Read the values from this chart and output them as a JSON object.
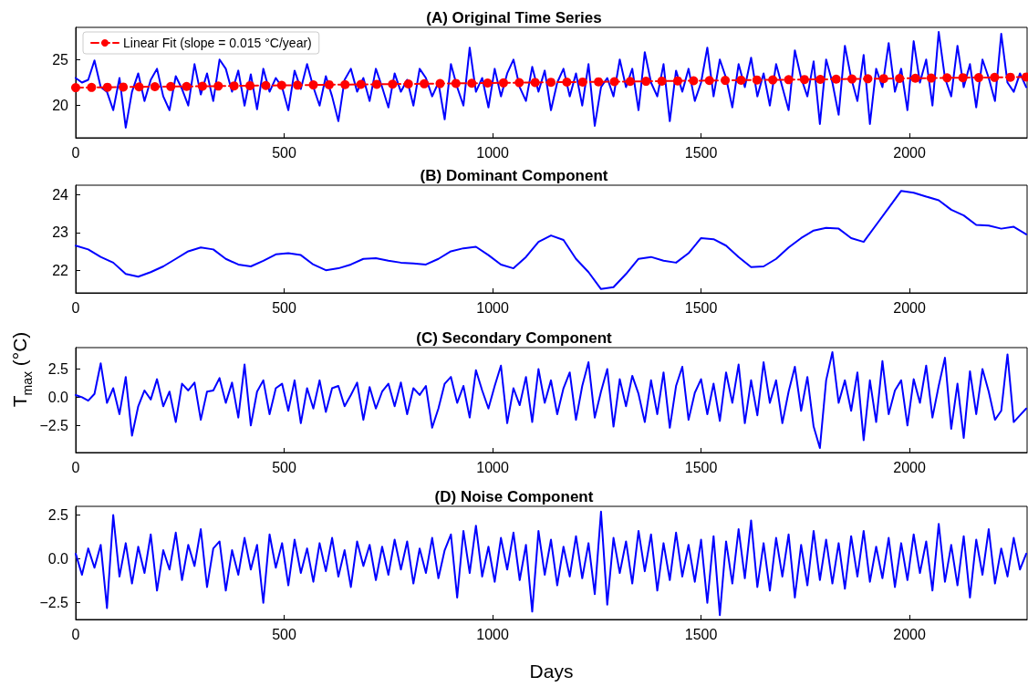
{
  "chart_data": [
    {
      "type": "line",
      "title": "(A) Original Time Series",
      "xlim": [
        0,
        2282
      ],
      "xticks": [
        0,
        500,
        1000,
        1500,
        2000
      ],
      "ylim": [
        16.5,
        28.5
      ],
      "yticks": [
        20,
        25
      ],
      "legend": "top left",
      "marker": "none",
      "line_style": "solid",
      "x": [
        0,
        15,
        30,
        45,
        60,
        75,
        90,
        105,
        120,
        135,
        150,
        165,
        180,
        195,
        210,
        225,
        240,
        255,
        270,
        285,
        300,
        315,
        330,
        345,
        360,
        375,
        390,
        405,
        420,
        435,
        450,
        465,
        480,
        495,
        510,
        525,
        540,
        555,
        570,
        585,
        600,
        615,
        630,
        645,
        660,
        675,
        690,
        705,
        720,
        735,
        750,
        765,
        780,
        795,
        810,
        825,
        840,
        855,
        870,
        885,
        900,
        915,
        930,
        945,
        960,
        975,
        990,
        1005,
        1020,
        1035,
        1050,
        1065,
        1080,
        1095,
        1110,
        1125,
        1140,
        1155,
        1170,
        1185,
        1200,
        1215,
        1230,
        1245,
        1260,
        1275,
        1290,
        1305,
        1320,
        1335,
        1350,
        1365,
        1380,
        1395,
        1410,
        1425,
        1440,
        1455,
        1470,
        1485,
        1500,
        1515,
        1530,
        1545,
        1560,
        1575,
        1590,
        1605,
        1620,
        1635,
        1650,
        1665,
        1680,
        1695,
        1710,
        1725,
        1740,
        1755,
        1770,
        1785,
        1800,
        1815,
        1830,
        1845,
        1860,
        1875,
        1890,
        1905,
        1920,
        1935,
        1950,
        1965,
        1980,
        1995,
        2010,
        2025,
        2040,
        2055,
        2070,
        2085,
        2100,
        2115,
        2130,
        2145,
        2160,
        2175,
        2190,
        2205,
        2220,
        2235,
        2250,
        2265,
        2280
      ],
      "series": [
        {
          "color": "#0000ff",
          "values": [
            23.0,
            22.5,
            22.8,
            24.9,
            22.0,
            21.5,
            19.5,
            23.0,
            17.6,
            21.5,
            23.5,
            20.5,
            22.8,
            24.0,
            21.0,
            19.5,
            23.2,
            21.8,
            20.0,
            24.5,
            21.2,
            23.5,
            20.5,
            25.0,
            24.0,
            21.5,
            23.8,
            20.0,
            23.4,
            19.6,
            24.0,
            21.5,
            23.0,
            22.0,
            19.5,
            23.8,
            21.8,
            24.5,
            22.0,
            20.0,
            23.2,
            21.0,
            18.3,
            22.8,
            24.0,
            21.5,
            23.0,
            20.5,
            24.0,
            22.0,
            19.8,
            23.5,
            21.5,
            22.8,
            20.0,
            24.0,
            23.0,
            21.0,
            22.5,
            18.5,
            24.5,
            22.0,
            20.0,
            26.3,
            21.5,
            23.0,
            19.8,
            24.0,
            21.0,
            23.5,
            25.0,
            22.0,
            20.5,
            24.2,
            21.5,
            23.8,
            19.5,
            22.5,
            24.0,
            21.0,
            23.5,
            20.0,
            24.5,
            17.8,
            22.0,
            23.0,
            21.0,
            25.0,
            22.0,
            24.0,
            19.5,
            25.8,
            22.5,
            21.0,
            24.5,
            18.3,
            23.8,
            21.5,
            24.0,
            20.5,
            22.5,
            26.3,
            21.0,
            25.0,
            23.0,
            19.8,
            24.5,
            22.0,
            25.2,
            21.0,
            23.5,
            20.0,
            24.5,
            22.0,
            19.5,
            26.0,
            23.0,
            21.0,
            24.8,
            18.0,
            25.0,
            22.5,
            19.0,
            26.5,
            23.0,
            20.5,
            25.5,
            18.0,
            24.0,
            22.0,
            26.8,
            21.5,
            24.0,
            19.5,
            27.0,
            22.5,
            25.0,
            20.0,
            28.0,
            23.0,
            21.0,
            26.5,
            22.0,
            24.5,
            19.8,
            25.0,
            23.0,
            20.5,
            27.8,
            22.5,
            21.5,
            23.5,
            22.0
          ]
        },
        {
          "name": "Linear Fit (slope = 0.015 °C/year)",
          "color": "#ff0000",
          "marker": "circle",
          "line_style": "dashed",
          "x": [
            0,
            38,
            76,
            114,
            152,
            190,
            228,
            266,
            304,
            342,
            380,
            418,
            456,
            494,
            532,
            570,
            608,
            646,
            684,
            722,
            760,
            798,
            836,
            874,
            912,
            950,
            988,
            1026,
            1064,
            1102,
            1140,
            1178,
            1216,
            1254,
            1292,
            1330,
            1368,
            1406,
            1444,
            1482,
            1520,
            1558,
            1596,
            1634,
            1672,
            1710,
            1748,
            1786,
            1824,
            1862,
            1900,
            1938,
            1976,
            2014,
            2052,
            2090,
            2128,
            2166,
            2204,
            2242,
            2280
          ],
          "values": [
            21.95,
            21.97,
            21.99,
            22.01,
            22.03,
            22.05,
            22.07,
            22.08,
            22.1,
            22.12,
            22.14,
            22.16,
            22.18,
            22.2,
            22.22,
            22.24,
            22.26,
            22.28,
            22.3,
            22.31,
            22.33,
            22.35,
            22.37,
            22.39,
            22.41,
            22.43,
            22.45,
            22.47,
            22.49,
            22.51,
            22.53,
            22.55,
            22.56,
            22.58,
            22.6,
            22.62,
            22.64,
            22.66,
            22.68,
            22.7,
            22.72,
            22.74,
            22.76,
            22.78,
            22.79,
            22.81,
            22.83,
            22.85,
            22.87,
            22.89,
            22.91,
            22.93,
            22.95,
            22.97,
            22.99,
            23.01,
            23.03,
            23.04,
            23.06,
            23.08,
            23.1
          ]
        }
      ]
    },
    {
      "type": "line",
      "title": "(B) Dominant Component",
      "ylabel": "T$_{max}$ (°C)",
      "xlim": [
        0,
        2282
      ],
      "xticks": [
        0,
        500,
        1000,
        1500,
        2000
      ],
      "ylim": [
        21.4,
        24.25
      ],
      "yticks": [
        22,
        23,
        24
      ],
      "marker": "none",
      "x": [
        0,
        30,
        60,
        90,
        120,
        150,
        180,
        210,
        240,
        270,
        300,
        330,
        360,
        390,
        420,
        450,
        480,
        510,
        540,
        570,
        600,
        630,
        660,
        690,
        720,
        750,
        780,
        810,
        840,
        870,
        900,
        930,
        960,
        990,
        1020,
        1050,
        1080,
        1110,
        1140,
        1170,
        1200,
        1230,
        1260,
        1290,
        1320,
        1350,
        1380,
        1410,
        1440,
        1470,
        1500,
        1530,
        1560,
        1590,
        1620,
        1650,
        1680,
        1710,
        1740,
        1770,
        1800,
        1830,
        1860,
        1890,
        1920,
        1950,
        1980,
        2010,
        2040,
        2070,
        2100,
        2130,
        2160,
        2190,
        2220,
        2250,
        2280
      ],
      "series": [
        {
          "color": "#0000ff",
          "values": [
            22.65,
            22.55,
            22.35,
            22.2,
            21.9,
            21.83,
            21.95,
            22.1,
            22.3,
            22.5,
            22.6,
            22.55,
            22.3,
            22.15,
            22.1,
            22.25,
            22.42,
            22.45,
            22.4,
            22.15,
            22.0,
            22.05,
            22.15,
            22.3,
            22.32,
            22.25,
            22.2,
            22.18,
            22.15,
            22.3,
            22.5,
            22.58,
            22.62,
            22.4,
            22.15,
            22.05,
            22.35,
            22.75,
            22.92,
            22.8,
            22.3,
            21.95,
            21.5,
            21.55,
            21.9,
            22.3,
            22.35,
            22.25,
            22.2,
            22.45,
            22.85,
            22.82,
            22.65,
            22.35,
            22.08,
            22.1,
            22.3,
            22.6,
            22.85,
            23.05,
            23.12,
            23.1,
            22.85,
            22.75,
            23.2,
            23.65,
            24.1,
            24.05,
            23.95,
            23.85,
            23.6,
            23.45,
            23.2,
            23.18,
            23.1,
            23.15,
            22.95
          ]
        }
      ]
    },
    {
      "type": "line",
      "title": "(C) Secondary Component",
      "xlim": [
        0,
        2282
      ],
      "xticks": [
        0,
        500,
        1000,
        1500,
        2000
      ],
      "ylim": [
        -4.9,
        4.4
      ],
      "yticks": [
        -2.5,
        {
          "value": 0,
          "label": "0.0"
        },
        2.5
      ],
      "marker": "none",
      "x": [
        0,
        15,
        30,
        45,
        60,
        75,
        90,
        105,
        120,
        135,
        150,
        165,
        180,
        195,
        210,
        225,
        240,
        255,
        270,
        285,
        300,
        315,
        330,
        345,
        360,
        375,
        390,
        405,
        420,
        435,
        450,
        465,
        480,
        495,
        510,
        525,
        540,
        555,
        570,
        585,
        600,
        615,
        630,
        645,
        660,
        675,
        690,
        705,
        720,
        735,
        750,
        765,
        780,
        795,
        810,
        825,
        840,
        855,
        870,
        885,
        900,
        915,
        930,
        945,
        960,
        975,
        990,
        1005,
        1020,
        1035,
        1050,
        1065,
        1080,
        1095,
        1110,
        1125,
        1140,
        1155,
        1170,
        1185,
        1200,
        1215,
        1230,
        1245,
        1260,
        1275,
        1290,
        1305,
        1320,
        1335,
        1350,
        1365,
        1380,
        1395,
        1410,
        1425,
        1440,
        1455,
        1470,
        1485,
        1500,
        1515,
        1530,
        1545,
        1560,
        1575,
        1590,
        1605,
        1620,
        1635,
        1650,
        1665,
        1680,
        1695,
        1710,
        1725,
        1740,
        1755,
        1770,
        1785,
        1800,
        1815,
        1830,
        1845,
        1860,
        1875,
        1890,
        1905,
        1920,
        1935,
        1950,
        1965,
        1980,
        1995,
        2010,
        2025,
        2040,
        2055,
        2070,
        2085,
        2100,
        2115,
        2130,
        2145,
        2160,
        2175,
        2190,
        2205,
        2220,
        2235,
        2250,
        2265,
        2280
      ],
      "series": [
        {
          "color": "#0000ff",
          "values": [
            0.2,
            0.0,
            -0.3,
            0.3,
            3.0,
            -0.5,
            0.8,
            -1.5,
            1.8,
            -3.4,
            -0.8,
            0.6,
            -0.2,
            1.6,
            -0.8,
            0.5,
            -2.2,
            1.2,
            0.6,
            1.3,
            -2.0,
            0.5,
            0.6,
            1.7,
            -0.5,
            1.3,
            -1.8,
            2.9,
            -2.5,
            0.5,
            1.5,
            -1.5,
            0.8,
            1.2,
            -1.2,
            1.5,
            -2.3,
            0.8,
            -1.0,
            1.5,
            -1.3,
            0.8,
            1.0,
            -0.8,
            0.2,
            1.3,
            -2.0,
            0.9,
            -1.0,
            0.5,
            1.2,
            -0.8,
            1.3,
            -1.5,
            0.8,
            0.2,
            1.0,
            -2.7,
            -1.0,
            1.2,
            1.8,
            -0.5,
            1.0,
            -1.8,
            2.4,
            0.6,
            -1.0,
            1.0,
            2.8,
            -2.3,
            0.8,
            -0.7,
            1.8,
            -2.2,
            2.5,
            -0.5,
            1.5,
            -1.5,
            0.8,
            2.2,
            -2.0,
            1.0,
            3.1,
            -1.8,
            0.5,
            2.5,
            -2.6,
            1.6,
            -0.8,
            1.9,
            0.3,
            -2.2,
            1.5,
            -1.5,
            2.2,
            -2.7,
            1.0,
            2.7,
            -2.0,
            0.4,
            1.6,
            -1.5,
            1.2,
            -2.1,
            2.2,
            -0.5,
            2.9,
            -2.3,
            1.5,
            -1.6,
            3.1,
            -0.5,
            1.5,
            -2.3,
            0.5,
            2.7,
            -1.2,
            1.8,
            -2.6,
            -4.5,
            1.5,
            4.0,
            -0.5,
            1.5,
            -1.2,
            2.2,
            -3.8,
            1.5,
            -2.2,
            3.2,
            -1.5,
            0.6,
            1.5,
            -2.5,
            1.6,
            -0.5,
            2.8,
            -1.8,
            1.0,
            3.5,
            -2.8,
            1.2,
            -3.6,
            2.3,
            -1.5,
            2.5,
            0.5,
            -2.0,
            -1.2,
            3.8,
            -2.2,
            -1.6,
            -1.0
          ]
        }
      ]
    },
    {
      "type": "line",
      "title": "(D) Noise Component",
      "xlabel": "Days",
      "xlim": [
        0,
        2282
      ],
      "xticks": [
        0,
        500,
        1000,
        1500,
        2000
      ],
      "ylim": [
        -3.45,
        3.0
      ],
      "yticks": [
        -2.5,
        {
          "value": 0,
          "label": "0.0"
        },
        2.5
      ],
      "marker": "none",
      "x": [
        0,
        15,
        30,
        45,
        60,
        75,
        90,
        105,
        120,
        135,
        150,
        165,
        180,
        195,
        210,
        225,
        240,
        255,
        270,
        285,
        300,
        315,
        330,
        345,
        360,
        375,
        390,
        405,
        420,
        435,
        450,
        465,
        480,
        495,
        510,
        525,
        540,
        555,
        570,
        585,
        600,
        615,
        630,
        645,
        660,
        675,
        690,
        705,
        720,
        735,
        750,
        765,
        780,
        795,
        810,
        825,
        840,
        855,
        870,
        885,
        900,
        915,
        930,
        945,
        960,
        975,
        990,
        1005,
        1020,
        1035,
        1050,
        1065,
        1080,
        1095,
        1110,
        1125,
        1140,
        1155,
        1170,
        1185,
        1200,
        1215,
        1230,
        1245,
        1260,
        1275,
        1290,
        1305,
        1320,
        1335,
        1350,
        1365,
        1380,
        1395,
        1410,
        1425,
        1440,
        1455,
        1470,
        1485,
        1500,
        1515,
        1530,
        1545,
        1560,
        1575,
        1590,
        1605,
        1620,
        1635,
        1650,
        1665,
        1680,
        1695,
        1710,
        1725,
        1740,
        1755,
        1770,
        1785,
        1800,
        1815,
        1830,
        1845,
        1860,
        1875,
        1890,
        1905,
        1920,
        1935,
        1950,
        1965,
        1980,
        1995,
        2010,
        2025,
        2040,
        2055,
        2070,
        2085,
        2100,
        2115,
        2130,
        2145,
        2160,
        2175,
        2190,
        2205,
        2220,
        2235,
        2250,
        2265,
        2280
      ],
      "series": [
        {
          "color": "#0000ff",
          "values": [
            0.3,
            -0.9,
            0.6,
            -0.5,
            0.8,
            -2.8,
            2.5,
            -1.0,
            0.9,
            -1.4,
            0.7,
            -0.8,
            1.4,
            -1.8,
            0.5,
            -0.6,
            1.5,
            -1.2,
            0.8,
            -0.4,
            1.7,
            -1.6,
            0.6,
            1.0,
            -1.8,
            0.5,
            -0.9,
            1.2,
            -0.6,
            0.8,
            -2.5,
            1.4,
            -0.5,
            0.9,
            -1.5,
            1.1,
            -0.8,
            0.6,
            -1.3,
            0.9,
            -0.7,
            1.2,
            -1.0,
            0.5,
            -1.6,
            1.0,
            -0.4,
            0.8,
            -1.2,
            0.7,
            -0.9,
            1.1,
            -0.6,
            1.0,
            -1.4,
            0.6,
            -0.8,
            1.2,
            -1.1,
            0.5,
            1.4,
            -2.2,
            1.6,
            -0.8,
            1.9,
            -1.0,
            0.7,
            -1.3,
            1.2,
            -0.6,
            1.5,
            -1.2,
            0.8,
            -3.0,
            1.6,
            -0.9,
            1.1,
            -1.5,
            0.7,
            -1.0,
            1.3,
            -1.1,
            0.9,
            -2.0,
            2.7,
            -2.6,
            1.2,
            -0.8,
            1.0,
            -1.4,
            1.6,
            -0.7,
            1.4,
            -1.8,
            0.9,
            -1.2,
            1.5,
            -1.0,
            0.8,
            -1.3,
            1.1,
            -2.5,
            1.3,
            -3.2,
            1.0,
            -1.4,
            1.7,
            -1.1,
            2.2,
            -1.6,
            0.9,
            -1.8,
            1.2,
            -1.0,
            1.4,
            -2.2,
            0.8,
            -1.5,
            1.6,
            -1.2,
            1.1,
            -1.4,
            0.9,
            -1.7,
            1.3,
            -1.0,
            1.6,
            -1.3,
            0.7,
            -1.1,
            1.2,
            -1.6,
            0.9,
            -1.2,
            1.4,
            -0.8,
            1.0,
            -1.8,
            2.0,
            -1.3,
            0.8,
            -1.5,
            1.3,
            -2.2,
            1.1,
            -0.9,
            1.7,
            -1.4,
            0.6,
            -1.0,
            1.2,
            -0.6,
            0.3
          ]
        }
      ]
    }
  ]
}
